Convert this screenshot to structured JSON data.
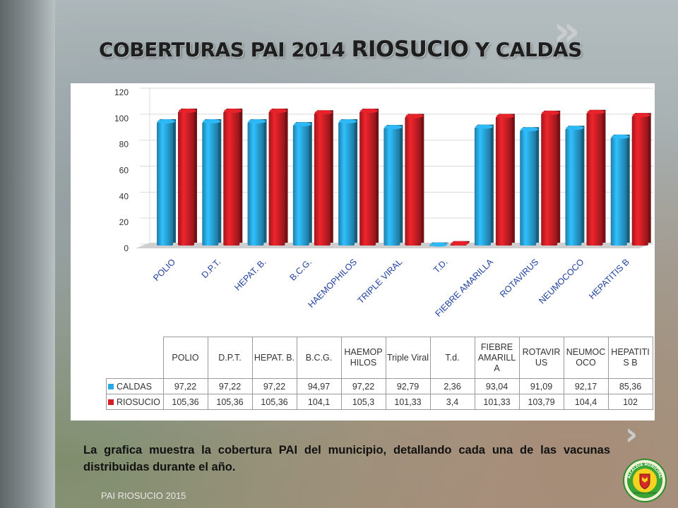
{
  "slide": {
    "title_part1": "COBERTURAS PAI 2014 ",
    "title_part2": "RIOSUCIO",
    "title_part3": " Y CALDAS",
    "caption": "La grafica muestra la cobertura PAI del municipio, detallando cada una de las vacunas distribuidas durante el año.",
    "footer": "PAI RIOSUCIO 2015",
    "chevron_top": "»",
    "chevron_mid": "›",
    "logo_text_top": "ALCALDÍA MUNICIPAL",
    "logo_text_bottom": "RIOSUCIO CALDAS"
  },
  "chart_data": {
    "type": "bar",
    "title": "",
    "xlabel": "",
    "ylabel": "",
    "ylim": [
      0,
      120
    ],
    "yticks": [
      0,
      20,
      40,
      60,
      80,
      100,
      120
    ],
    "grid": true,
    "legend": "table",
    "categories": [
      "POLIO",
      "D.P.T.",
      "HEPAT. B.",
      "B.C.G.",
      "HAEMOPHILOS",
      "TRIPLE VIRAL",
      "T.D.",
      "FIEBRE AMARILLA",
      "ROTAVIRUS",
      "NEUMOCOCO",
      "HEPATITIS B"
    ],
    "series": [
      {
        "name": "CALDAS",
        "color": "#2aa8e0",
        "values": [
          97.22,
          97.22,
          97.22,
          94.97,
          97.22,
          92.79,
          2.36,
          93.04,
          91.09,
          92.17,
          85.36
        ]
      },
      {
        "name": "RIOSUCIO",
        "color": "#d21f26",
        "values": [
          105.36,
          105.36,
          105.36,
          104.1,
          105.3,
          101.33,
          3.4,
          101.33,
          103.79,
          104.4,
          102
        ]
      }
    ],
    "table": {
      "headers": [
        "POLIO",
        "D.P.T.",
        "HEPAT. B.",
        "B.C.G.",
        "HAEMOP HILOS",
        "Triple Viral",
        "T.d.",
        "FIEBRE AMARILL A",
        "ROTAVIR US",
        "NEUMOC OCO",
        "HEPATITI S B"
      ],
      "rows": [
        {
          "name": "CALDAS",
          "cells": [
            "97,22",
            "97,22",
            "97,22",
            "94,97",
            "97,22",
            "92,79",
            "2,36",
            "93,04",
            "91,09",
            "92,17",
            "85,36"
          ]
        },
        {
          "name": "RIOSUCIO",
          "cells": [
            "105,36",
            "105,36",
            "105,36",
            "104,1",
            "105,3",
            "101,33",
            "3,4",
            "101,33",
            "103,79",
            "104,4",
            "102"
          ]
        }
      ]
    }
  }
}
